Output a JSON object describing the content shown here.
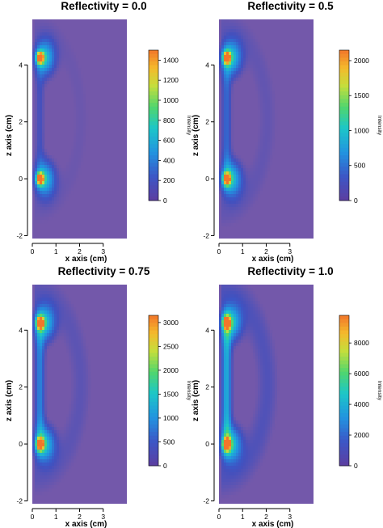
{
  "chart_data": [
    {
      "type": "heatmap",
      "title": "Reflectivity = 0.0",
      "xlabel": "x axis (cm)",
      "ylabel": "z axis (cm)",
      "colorbar_label": "Intensity",
      "xlim": [
        0,
        4
      ],
      "ylim": [
        -2.1,
        5.6
      ],
      "x_ticks": [
        0,
        1,
        2,
        3
      ],
      "y_ticks": [
        -2,
        0,
        2,
        4
      ],
      "colorbar_ticks": [
        0,
        200,
        400,
        600,
        800,
        1000,
        1200,
        1400
      ],
      "colorbar_max": 1500,
      "hotspots": [
        {
          "x": 0.3,
          "z": 4.2,
          "value": 1500
        },
        {
          "x": 0.3,
          "z": 0.0,
          "value": 1500
        }
      ]
    },
    {
      "type": "heatmap",
      "title": "Reflectivity = 0.5",
      "xlabel": "x axis (cm)",
      "ylabel": "z axis (cm)",
      "colorbar_label": "Intensity",
      "xlim": [
        0,
        4
      ],
      "ylim": [
        -2.1,
        5.6
      ],
      "x_ticks": [
        0,
        1,
        2,
        3
      ],
      "y_ticks": [
        -2,
        0,
        2,
        4
      ],
      "colorbar_ticks": [
        0,
        500,
        1000,
        1500,
        2000
      ],
      "colorbar_max": 2150,
      "hotspots": [
        {
          "x": 0.3,
          "z": 4.2,
          "value": 2150
        },
        {
          "x": 0.3,
          "z": 0.0,
          "value": 2150
        }
      ]
    },
    {
      "type": "heatmap",
      "title": "Reflectivity = 0.75",
      "xlabel": "x axis (cm)",
      "ylabel": "z axis (cm)",
      "colorbar_label": "Intensity",
      "xlim": [
        0,
        4
      ],
      "ylim": [
        -2.1,
        5.6
      ],
      "x_ticks": [
        0,
        1,
        2,
        3
      ],
      "y_ticks": [
        -2,
        0,
        2,
        4
      ],
      "colorbar_ticks": [
        0,
        500,
        1000,
        1500,
        2000,
        2500,
        3000
      ],
      "colorbar_max": 3150,
      "hotspots": [
        {
          "x": 0.3,
          "z": 4.2,
          "value": 3150
        },
        {
          "x": 0.3,
          "z": 0.0,
          "value": 3150
        }
      ]
    },
    {
      "type": "heatmap",
      "title": "Reflectivity = 1.0",
      "xlabel": "x axis (cm)",
      "ylabel": "z axis (cm)",
      "colorbar_label": "Intensity",
      "xlim": [
        0,
        4
      ],
      "ylim": [
        -2.1,
        5.6
      ],
      "x_ticks": [
        0,
        1,
        2,
        3
      ],
      "y_ticks": [
        -2,
        0,
        2,
        4
      ],
      "colorbar_ticks": [
        0,
        2000,
        4000,
        6000,
        8000
      ],
      "colorbar_max": 9800,
      "hotspots": [
        {
          "x": 0.3,
          "z": 4.2,
          "value": 9800
        },
        {
          "x": 0.3,
          "z": 0.0,
          "value": 9800
        }
      ]
    }
  ]
}
